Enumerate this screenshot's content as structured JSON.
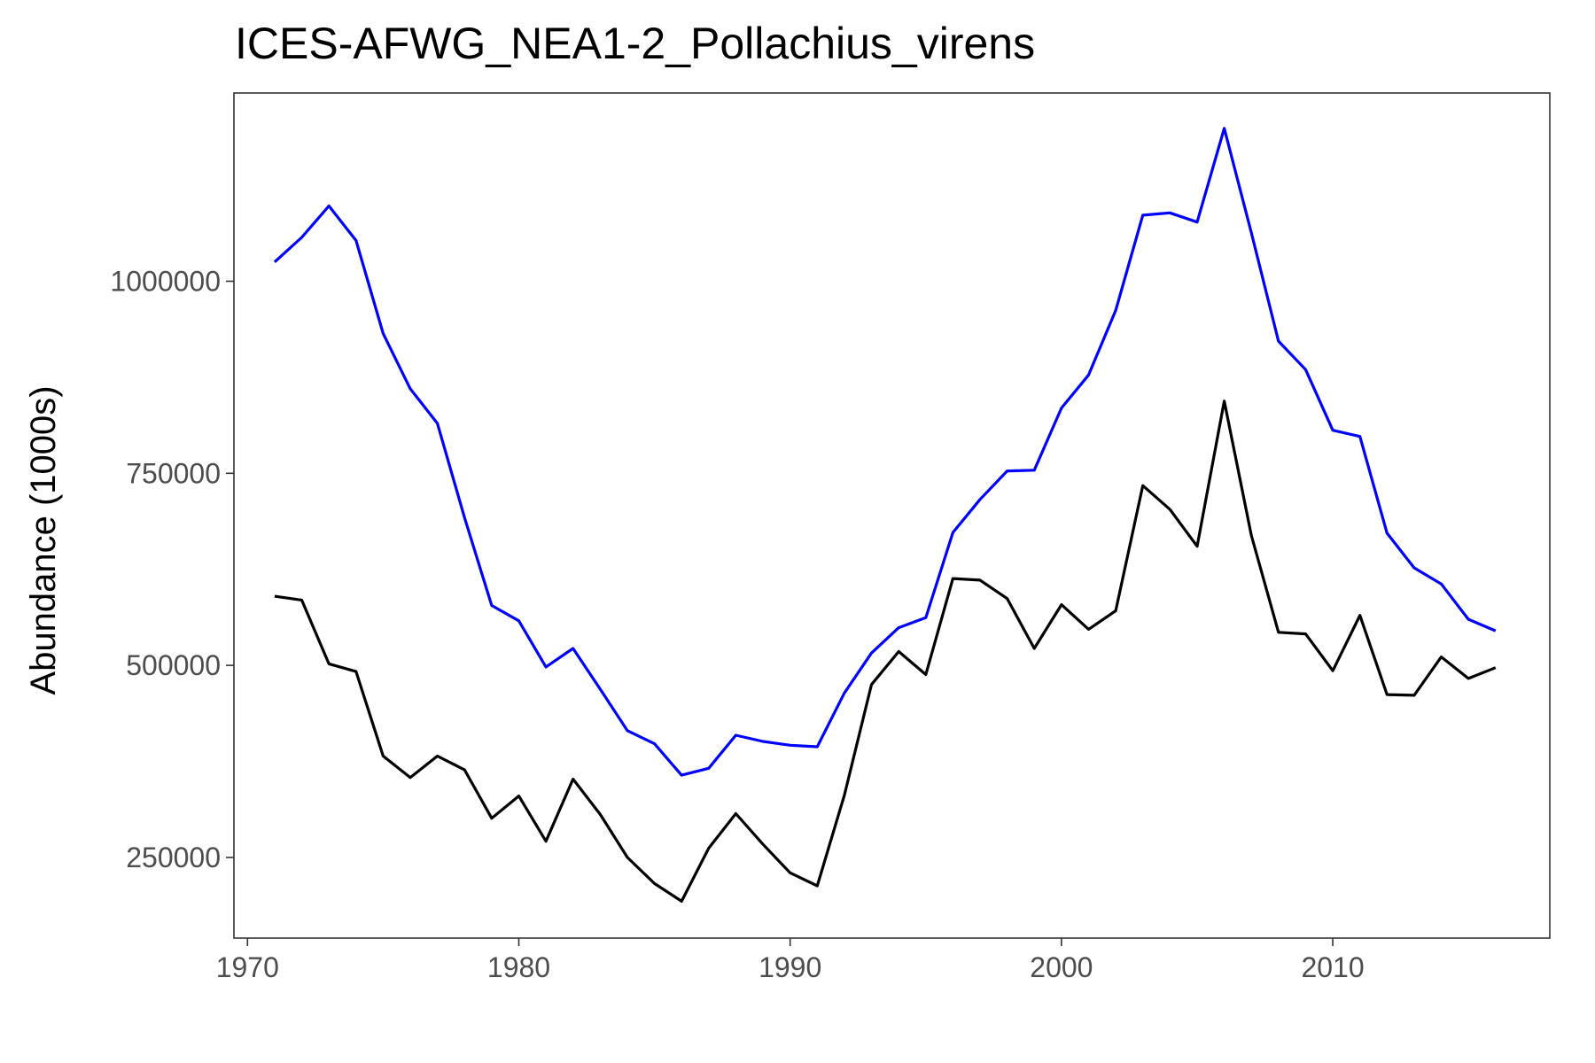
{
  "chart_data": {
    "type": "line",
    "title": "ICES-AFWG_NEA1-2_Pollachius_virens",
    "xlabel": "",
    "ylabel": "Abundance (1000s)",
    "xlim": [
      1969.5,
      2018.0
    ],
    "ylim": [
      145000,
      1245000
    ],
    "x_ticks": [
      1970,
      1980,
      1990,
      2000,
      2010
    ],
    "y_ticks": [
      250000,
      500000,
      750000,
      1000000
    ],
    "grid": false,
    "legend": "none",
    "x": [
      1971,
      1972,
      1973,
      1974,
      1975,
      1976,
      1977,
      1978,
      1979,
      1980,
      1981,
      1982,
      1983,
      1984,
      1985,
      1986,
      1987,
      1988,
      1989,
      1990,
      1991,
      1992,
      1993,
      1994,
      1995,
      1996,
      1997,
      1998,
      1999,
      2000,
      2001,
      2002,
      2003,
      2004,
      2005,
      2006,
      2007,
      2008,
      2009,
      2010,
      2011,
      2012,
      2013,
      2014,
      2015,
      2016
    ],
    "series": [
      {
        "color": "#0000ff",
        "values": [
          1025000,
          1057000,
          1098000,
          1053000,
          932000,
          860000,
          815000,
          692000,
          578000,
          558000,
          498000,
          522000,
          469000,
          415000,
          398000,
          357000,
          366000,
          409000,
          401000,
          396000,
          394000,
          464000,
          516000,
          549000,
          562000,
          673000,
          716000,
          753000,
          754000,
          835000,
          878000,
          962000,
          1086000,
          1089000,
          1077000,
          1199000,
          1063000,
          922000,
          885000,
          806000,
          798000,
          672000,
          627000,
          606000,
          560000,
          545000
        ]
      },
      {
        "color": "#000000",
        "values": [
          590000,
          585000,
          502000,
          492000,
          382000,
          354000,
          382000,
          364000,
          301000,
          330000,
          271000,
          352000,
          306000,
          250000,
          216000,
          193000,
          262000,
          307000,
          267000,
          230000,
          213000,
          331000,
          475000,
          518000,
          488000,
          613000,
          611000,
          587000,
          522000,
          579000,
          547000,
          571000,
          734000,
          703000,
          655000,
          844000,
          669000,
          543000,
          541000,
          493000,
          565000,
          462000,
          461000,
          511000,
          483000,
          497000
        ]
      }
    ]
  }
}
